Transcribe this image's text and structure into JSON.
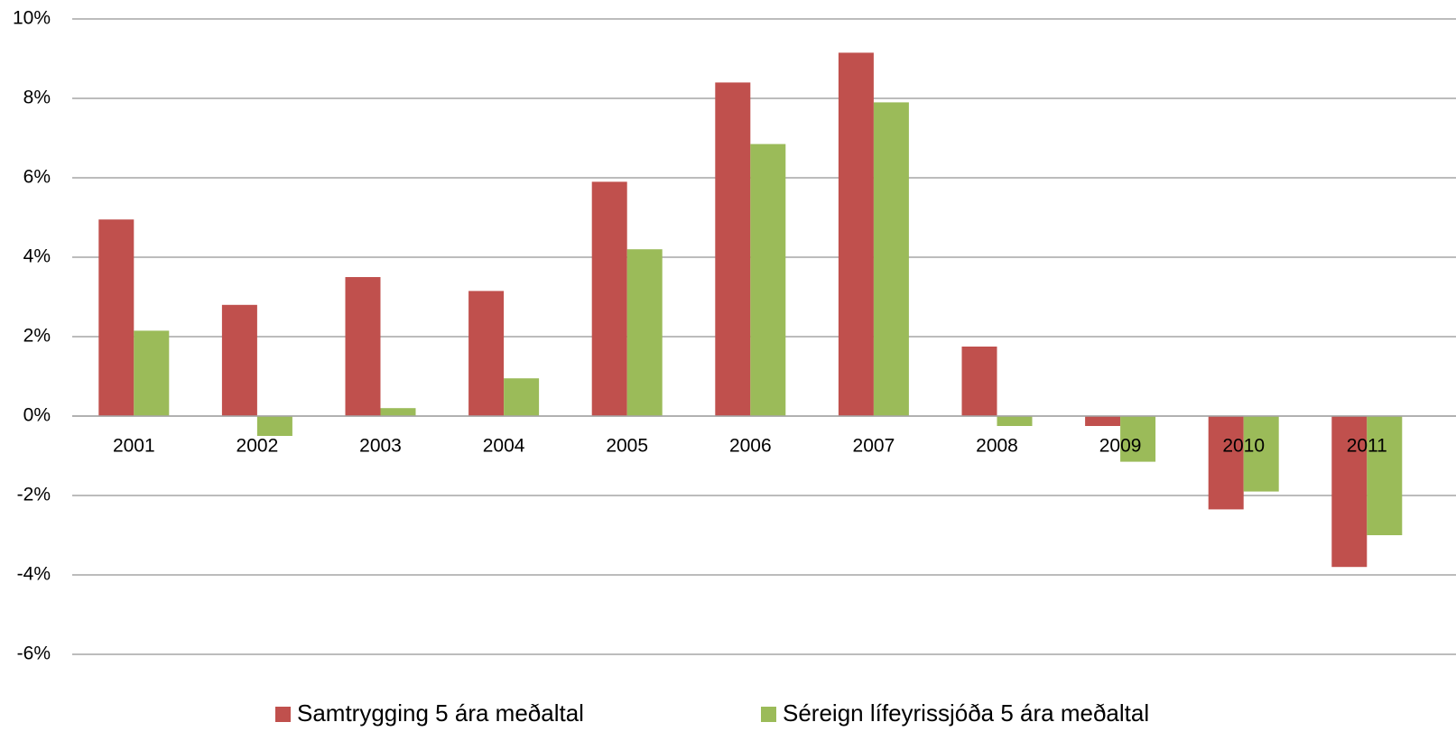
{
  "chart_data": {
    "type": "bar",
    "categories": [
      "2001",
      "2002",
      "2003",
      "2004",
      "2005",
      "2006",
      "2007",
      "2008",
      "2009",
      "2010",
      "2011"
    ],
    "series": [
      {
        "name": "Samtrygging 5 ára meðaltal",
        "color": "#c0504d",
        "values": [
          4.95,
          2.8,
          3.5,
          3.15,
          5.9,
          8.4,
          9.15,
          1.75,
          -0.25,
          -2.35,
          -3.8
        ]
      },
      {
        "name": "Séreign lífeyrissjóða 5 ára meðaltal",
        "color": "#9bbb59",
        "values": [
          2.15,
          -0.5,
          0.2,
          0.95,
          4.2,
          6.85,
          7.9,
          -0.25,
          -1.15,
          -1.9,
          -3.0
        ]
      }
    ],
    "ylim": [
      -6,
      10
    ],
    "yticks": [
      {
        "value": -6,
        "label": "-6%"
      },
      {
        "value": -4,
        "label": "-4%"
      },
      {
        "value": -2,
        "label": "-2%"
      },
      {
        "value": 0,
        "label": "0%"
      },
      {
        "value": 2,
        "label": "2%"
      },
      {
        "value": 4,
        "label": "4%"
      },
      {
        "value": 6,
        "label": "6%"
      },
      {
        "value": 8,
        "label": "8%"
      },
      {
        "value": 10,
        "label": "10%"
      }
    ],
    "grid": true,
    "legend": "bottom"
  }
}
